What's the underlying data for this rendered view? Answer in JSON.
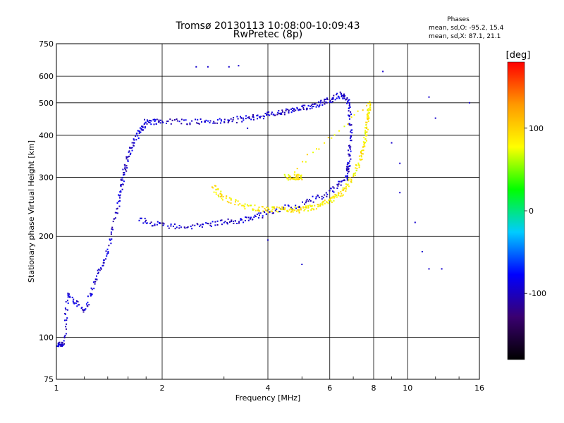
{
  "chart_data": {
    "type": "scatter",
    "title": "Tromsø 20130113 10:08:00-10:09:43",
    "subtitle": "RwPretec (8p)",
    "stats": {
      "heading": "Phases",
      "line_o": "mean, sd,O: -95.2, 15.4",
      "line_x": "mean, sd,X: 87.1, 21.1"
    },
    "xlabel": "Frequency [MHz]",
    "ylabel": "Stationary phase Virtual Height [km]",
    "xscale": "log",
    "yscale": "log",
    "xlim": [
      1,
      16
    ],
    "ylim": [
      75,
      750
    ],
    "xticks": [
      1,
      2,
      4,
      6,
      8,
      10,
      16
    ],
    "xtick_labels": [
      "1",
      "2",
      "4",
      "6",
      "8",
      "10",
      "16"
    ],
    "yticks": [
      75,
      100,
      200,
      300,
      400,
      500,
      600,
      750
    ],
    "ytick_labels": [
      "75",
      "100",
      "200",
      "300",
      "400",
      "500",
      "600",
      "750"
    ],
    "grid": true,
    "colorbar": {
      "label": "[deg]",
      "min": -180,
      "max": 180,
      "ticks": [
        100,
        0,
        -100
      ],
      "tick_labels": [
        "100",
        "0",
        "-100"
      ],
      "colors": [
        "#000000",
        "#3a0070",
        "#0000ff",
        "#00ccff",
        "#00ff00",
        "#ffff00",
        "#ff9900",
        "#ff0000"
      ]
    },
    "series": [
      {
        "mode": "O",
        "color_phase": -95,
        "trace": [
          [
            1.0,
            95
          ],
          [
            1.05,
            96
          ],
          [
            1.08,
            135
          ],
          [
            1.2,
            120
          ],
          [
            1.3,
            150
          ],
          [
            1.4,
            180
          ],
          [
            1.5,
            250
          ],
          [
            1.55,
            300
          ],
          [
            1.6,
            350
          ],
          [
            1.7,
            400
          ],
          [
            1.8,
            440
          ],
          [
            2.0,
            440
          ],
          [
            2.5,
            440
          ],
          [
            3.0,
            440
          ],
          [
            3.5,
            450
          ],
          [
            4.0,
            460
          ],
          [
            4.5,
            470
          ],
          [
            5.0,
            480
          ],
          [
            5.5,
            495
          ],
          [
            6.0,
            510
          ],
          [
            6.5,
            530
          ],
          [
            6.8,
            500
          ],
          [
            6.9,
            400
          ],
          [
            6.8,
            330
          ],
          [
            6.7,
            300
          ],
          [
            6.0,
            270
          ],
          [
            5.0,
            250
          ],
          [
            4.0,
            235
          ],
          [
            3.5,
            225
          ],
          [
            3.0,
            220
          ],
          [
            2.5,
            215
          ],
          [
            2.0,
            215
          ],
          [
            1.7,
            225
          ]
        ]
      },
      {
        "mode": "X",
        "color_phase": 87,
        "trace": [
          [
            2.8,
            280
          ],
          [
            3.0,
            260
          ],
          [
            3.5,
            245
          ],
          [
            4.0,
            240
          ],
          [
            4.5,
            240
          ],
          [
            5.0,
            240
          ],
          [
            5.5,
            245
          ],
          [
            6.0,
            255
          ],
          [
            6.5,
            270
          ],
          [
            7.0,
            300
          ],
          [
            7.4,
            350
          ],
          [
            7.6,
            400
          ],
          [
            7.7,
            450
          ],
          [
            7.8,
            500
          ],
          [
            4.5,
            300
          ],
          [
            4.8,
            300
          ],
          [
            5.0,
            300
          ]
        ]
      }
    ],
    "scattered": [
      [
        2.5,
        640
      ],
      [
        2.7,
        640
      ],
      [
        3.1,
        640
      ],
      [
        3.3,
        645
      ],
      [
        8.5,
        620
      ],
      [
        11.5,
        520
      ],
      [
        12.0,
        450
      ],
      [
        9.0,
        380
      ],
      [
        9.5,
        330
      ],
      [
        9.5,
        270
      ],
      [
        10.5,
        220
      ],
      [
        11.0,
        180
      ],
      [
        11.5,
        160
      ],
      [
        12.5,
        160
      ],
      [
        3.5,
        420
      ],
      [
        4.0,
        195
      ],
      [
        5.0,
        165
      ],
      [
        15.0,
        500
      ]
    ]
  }
}
